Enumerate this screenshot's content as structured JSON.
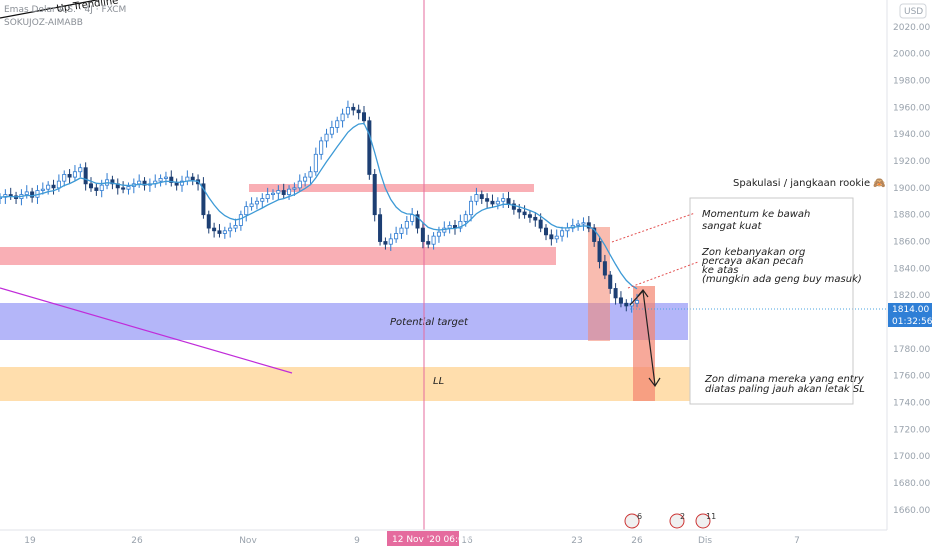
{
  "chart_data": {
    "type": "candlestick",
    "symbol_line": "Emas Dolar A.S. · 4J · FXCM",
    "author_line": "SOKUJOZ-AIMABB",
    "currency_badge": "USD",
    "price_label": "1814.00",
    "countdown_label": "01:32:56",
    "crosshair_date_label": "12 Nov '20  06:00",
    "ylim": [
      1645,
      2040
    ],
    "y_ticks": [
      "1660.00",
      "1680.00",
      "1700.00",
      "1720.00",
      "1740.00",
      "1760.00",
      "1780.00",
      "1800.00",
      "1820.00",
      "1840.00",
      "1860.00",
      "1880.00",
      "1900.00",
      "1920.00",
      "1940.00",
      "1960.00",
      "1980.00",
      "2000.00",
      "2020.00"
    ],
    "x_ticks": [
      "19",
      "26",
      "Nov",
      "9",
      "16",
      "23",
      "26",
      "Dis",
      "7"
    ],
    "zones": {
      "potential_target": "Potential target",
      "ll": "LL"
    },
    "trendline_label": "Up Trendline",
    "annotations": {
      "spekulasi": "Spakulasi / jangkaan rookie 🙈",
      "momentum_1": "Momentum ke bawah",
      "momentum_2": "sangat kuat",
      "zon_1": "Zon kebanyakan org",
      "zon_2": "percaya akan pecah",
      "zon_3": "ke atas",
      "zon_4": "(mungkin ada geng buy masuk)",
      "entry_1": "Zon dimana mereka yang entry",
      "entry_2": "diatas paling jauh akan letak SL"
    },
    "event_badges": [
      "6",
      "2",
      "11"
    ],
    "price_series": {
      "name": "",
      "close": [
        1893,
        1895,
        1894,
        1892,
        1895,
        1897,
        1893,
        1898,
        1899,
        1902,
        1900,
        1905,
        1910,
        1908,
        1912,
        1915,
        1903,
        1900,
        1898,
        1902,
        1906,
        1903,
        1900,
        1899,
        1901,
        1903,
        1905,
        1902,
        1903,
        1905,
        1907,
        1908,
        1904,
        1902,
        1905,
        1908,
        1906,
        1903,
        1880,
        1870,
        1868,
        1866,
        1868,
        1870,
        1872,
        1880,
        1886,
        1888,
        1890,
        1892,
        1895,
        1896,
        1898,
        1895,
        1899,
        1900,
        1905,
        1908,
        1912,
        1925,
        1935,
        1940,
        1945,
        1950,
        1955,
        1960,
        1958,
        1956,
        1950,
        1910,
        1880,
        1860,
        1858,
        1862,
        1866,
        1870,
        1875,
        1880,
        1870,
        1860,
        1858,
        1864,
        1867,
        1870,
        1872,
        1870,
        1875,
        1880,
        1890,
        1895,
        1892,
        1890,
        1888,
        1890,
        1892,
        1888,
        1884,
        1882,
        1880,
        1878,
        1876,
        1870,
        1865,
        1862,
        1864,
        1868,
        1870,
        1872,
        1873,
        1874,
        1870,
        1860,
        1845,
        1835,
        1825,
        1818,
        1814,
        1812,
        1814,
        1816
      ],
      "x_start": 0,
      "x_end": 637
    }
  }
}
